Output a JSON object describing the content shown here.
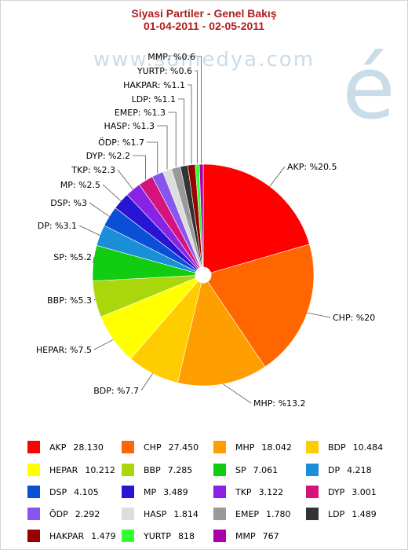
{
  "title": {
    "line1": "Siyasi Partiler - Genel Bakış",
    "line2": "01-04-2011 - 02-05-2011"
  },
  "watermark": {
    "text": "www.somedya.com",
    "logo": "é"
  },
  "chart_data": {
    "type": "pie",
    "title": "Siyasi Partiler - Genel Bakış",
    "subtitle": "01-04-2011 - 02-05-2011",
    "slices": [
      {
        "name": "AKP",
        "value": 28130,
        "value_label": "28.130",
        "percent_label": "AKP: %20.5",
        "color": "#ff0000"
      },
      {
        "name": "CHP",
        "value": 27450,
        "value_label": "27.450",
        "percent_label": "CHP: %20",
        "color": "#ff6600"
      },
      {
        "name": "MHP",
        "value": 18042,
        "value_label": "18.042",
        "percent_label": "MHP: %13.2",
        "color": "#ff9e00"
      },
      {
        "name": "BDP",
        "value": 10484,
        "value_label": "10.484",
        "percent_label": "BDP: %7.7",
        "color": "#ffcc00"
      },
      {
        "name": "HEPAR",
        "value": 10212,
        "value_label": "10.212",
        "percent_label": "HEPAR: %7.5",
        "color": "#ffff00"
      },
      {
        "name": "BBP",
        "value": 7285,
        "value_label": "7.285",
        "percent_label": "BBP: %5.3",
        "color": "#a9d70b"
      },
      {
        "name": "SP",
        "value": 7061,
        "value_label": "7.061",
        "percent_label": "SP: %5.2",
        "color": "#11cc11"
      },
      {
        "name": "DP",
        "value": 4218,
        "value_label": "4.218",
        "percent_label": "DP: %3.1",
        "color": "#1a8fd8"
      },
      {
        "name": "DSP",
        "value": 4105,
        "value_label": "4.105",
        "percent_label": "DSP: %3",
        "color": "#0b4fd6"
      },
      {
        "name": "MP",
        "value": 3489,
        "value_label": "3.489",
        "percent_label": "MP: %2.5",
        "color": "#2a14d4"
      },
      {
        "name": "TKP",
        "value": 3122,
        "value_label": "3.122",
        "percent_label": "TKP: %2.3",
        "color": "#8a22e6"
      },
      {
        "name": "DYP",
        "value": 3001,
        "value_label": "3.001",
        "percent_label": "DYP: %2.2",
        "color": "#d4147c"
      },
      {
        "name": "ÖDP",
        "value": 2292,
        "value_label": "2.292",
        "percent_label": "ÖDP: %1.7",
        "color": "#8855ee"
      },
      {
        "name": "HASP",
        "value": 1814,
        "value_label": "1.814",
        "percent_label": "HASP: %1.3",
        "color": "#dddddd"
      },
      {
        "name": "EMEP",
        "value": 1780,
        "value_label": "1.780",
        "percent_label": "EMEP: %1.3",
        "color": "#999999"
      },
      {
        "name": "LDP",
        "value": 1489,
        "value_label": "1.489",
        "percent_label": "LDP: %1.1",
        "color": "#333333"
      },
      {
        "name": "HAKPAR",
        "value": 1479,
        "value_label": "1.479",
        "percent_label": "HAKPAR: %1.1",
        "color": "#990000"
      },
      {
        "name": "YURTP",
        "value": 818,
        "value_label": "818",
        "percent_label": "YURTP: %0.6",
        "color": "#33ff33"
      },
      {
        "name": "MMP",
        "value": 767,
        "value_label": "767",
        "percent_label": "MMP: %0.6",
        "color": "#aa00aa"
      }
    ],
    "legend_position": "bottom"
  }
}
